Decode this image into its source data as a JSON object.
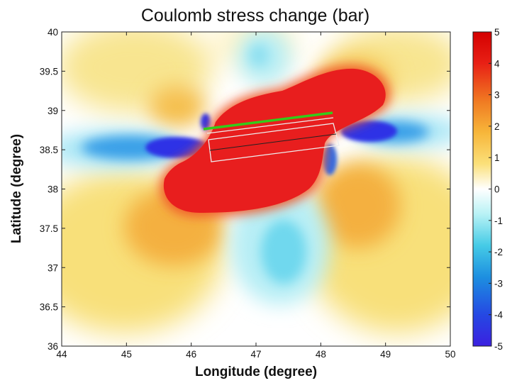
{
  "chart_data": {
    "type": "heatmap",
    "title": "Coulomb stress change (bar)",
    "xlabel": "Longitude (degree)",
    "ylabel": "Latitude  (degree)",
    "xlim": [
      44,
      50
    ],
    "ylim": [
      36,
      40
    ],
    "x_ticks": [
      "44",
      "45",
      "46",
      "47",
      "48",
      "49",
      "50"
    ],
    "y_ticks": [
      "36",
      "36.5",
      "37",
      "37.5",
      "38",
      "38.5",
      "39",
      "39.5",
      "40"
    ],
    "colorbar": {
      "min": -5,
      "max": 5,
      "ticks": [
        "5",
        "4",
        "3",
        "2",
        "1",
        "0",
        "-1",
        "-2",
        "-3",
        "-4",
        "-5"
      ],
      "colormap": "jet-like (blue negative, white zero, red positive)"
    },
    "fault_trace": {
      "color": "#33cc1a",
      "points": [
        [
          46.3,
          38.76
        ],
        [
          48.1,
          38.96
        ]
      ]
    },
    "fault_planes": [
      {
        "color": "#e8e8e8",
        "points": [
          [
            46.3,
            38.7
          ],
          [
            48.1,
            38.85
          ],
          [
            48.3,
            38.55
          ],
          [
            46.4,
            38.35
          ]
        ]
      },
      {
        "color": "#e8e8e8",
        "points": [
          [
            46.4,
            38.6
          ],
          [
            48.2,
            38.78
          ]
        ]
      }
    ]
  }
}
